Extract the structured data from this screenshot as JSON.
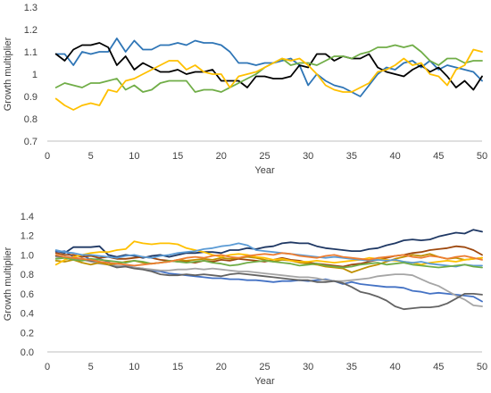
{
  "chart_data": [
    {
      "type": "line",
      "title": "",
      "xlabel": "Year",
      "ylabel": "Growth multiplier",
      "xlim": [
        0,
        50
      ],
      "ylim": [
        0.7,
        1.3
      ],
      "xticks": [
        0,
        5,
        10,
        15,
        20,
        25,
        30,
        35,
        40,
        45,
        50
      ],
      "yticks": [
        0.7,
        0.8,
        0.9,
        1.0,
        1.1,
        1.2,
        1.3
      ],
      "ytick_labels": [
        "0.7",
        "0.8",
        "0.9",
        "1",
        "1.1",
        "1.2",
        "1.3"
      ],
      "grid": false,
      "legend": "none",
      "x": [
        1,
        2,
        3,
        4,
        5,
        6,
        7,
        8,
        9,
        10,
        11,
        12,
        13,
        14,
        15,
        16,
        17,
        18,
        19,
        20,
        21,
        22,
        23,
        24,
        25,
        26,
        27,
        28,
        29,
        30,
        31,
        32,
        33,
        34,
        35,
        36,
        37,
        38,
        39,
        40,
        41,
        42,
        43,
        44,
        45,
        46,
        47,
        48,
        49,
        50
      ],
      "series": [
        {
          "color": "#2E75B6",
          "values": [
            1.09,
            1.09,
            1.04,
            1.1,
            1.09,
            1.1,
            1.1,
            1.16,
            1.1,
            1.15,
            1.11,
            1.11,
            1.13,
            1.13,
            1.14,
            1.13,
            1.15,
            1.14,
            1.14,
            1.13,
            1.1,
            1.05,
            1.05,
            1.04,
            1.05,
            1.05,
            1.06,
            1.07,
            1.04,
            0.95,
            1.0,
            0.97,
            0.95,
            0.94,
            0.92,
            0.9,
            0.95,
            1.0,
            1.03,
            1.02,
            1.05,
            1.06,
            1.03,
            1.06,
            1.02,
            1.04,
            1.03,
            1.02,
            1.01,
            0.97
          ]
        },
        {
          "color": "#000000",
          "values": [
            1.09,
            1.06,
            1.11,
            1.13,
            1.13,
            1.14,
            1.12,
            1.04,
            1.08,
            1.02,
            1.05,
            1.03,
            1.01,
            1.01,
            1.02,
            1.0,
            1.01,
            1.01,
            1.02,
            0.97,
            0.97,
            0.97,
            0.94,
            0.99,
            0.99,
            0.98,
            0.98,
            0.99,
            1.04,
            1.03,
            1.09,
            1.09,
            1.06,
            1.08,
            1.07,
            1.07,
            1.09,
            1.03,
            1.01,
            1.0,
            0.99,
            1.02,
            1.04,
            1.01,
            1.03,
            0.99,
            0.94,
            0.97,
            0.93,
            0.99
          ]
        },
        {
          "color": "#70AD47",
          "values": [
            0.94,
            0.96,
            0.95,
            0.94,
            0.96,
            0.96,
            0.97,
            0.98,
            0.93,
            0.95,
            0.92,
            0.93,
            0.96,
            0.97,
            0.97,
            0.97,
            0.92,
            0.93,
            0.93,
            0.92,
            0.94,
            0.96,
            0.98,
            1.0,
            1.03,
            1.05,
            1.07,
            1.04,
            1.05,
            1.05,
            1.04,
            1.06,
            1.08,
            1.08,
            1.07,
            1.09,
            1.1,
            1.12,
            1.12,
            1.13,
            1.12,
            1.13,
            1.1,
            1.06,
            1.04,
            1.07,
            1.07,
            1.05,
            1.06,
            1.06
          ]
        },
        {
          "color": "#FFC000",
          "values": [
            0.89,
            0.86,
            0.84,
            0.86,
            0.87,
            0.86,
            0.93,
            0.92,
            0.97,
            0.98,
            1.0,
            1.02,
            1.04,
            1.06,
            1.06,
            1.02,
            1.04,
            1.01,
            1.0,
            1.0,
            0.94,
            0.99,
            1.0,
            1.01,
            1.03,
            1.05,
            1.07,
            1.06,
            1.07,
            1.04,
            1.0,
            0.95,
            0.93,
            0.92,
            0.92,
            0.94,
            0.96,
            1.01,
            1.02,
            1.04,
            1.07,
            1.04,
            1.05,
            1.0,
            0.99,
            0.95,
            1.02,
            1.04,
            1.11,
            1.1
          ]
        }
      ]
    },
    {
      "type": "line",
      "title": "",
      "xlabel": "Year",
      "ylabel": "Growth multiplier",
      "xlim": [
        0,
        50
      ],
      "ylim": [
        0.0,
        1.4
      ],
      "xticks": [
        0,
        5,
        10,
        15,
        20,
        25,
        30,
        35,
        40,
        45,
        50
      ],
      "yticks": [
        0.0,
        0.2,
        0.4,
        0.6,
        0.8,
        1.0,
        1.2,
        1.4
      ],
      "ytick_labels": [
        "0.0",
        "0.2",
        "0.4",
        "0.6",
        "0.8",
        "1.0",
        "1.2",
        "1.4"
      ],
      "grid": false,
      "legend": "none",
      "x": [
        1,
        2,
        3,
        4,
        5,
        6,
        7,
        8,
        9,
        10,
        11,
        12,
        13,
        14,
        15,
        16,
        17,
        18,
        19,
        20,
        21,
        22,
        23,
        24,
        25,
        26,
        27,
        28,
        29,
        30,
        31,
        32,
        33,
        34,
        35,
        36,
        37,
        38,
        39,
        40,
        41,
        42,
        43,
        44,
        45,
        46,
        47,
        48,
        49,
        50
      ],
      "series": [
        {
          "color": "#1F3864",
          "values": [
            1.04,
            1.02,
            1.08,
            1.08,
            1.08,
            1.09,
            1.0,
            0.98,
            1.0,
            0.99,
            0.97,
            0.99,
            1.0,
            0.98,
            1.0,
            1.02,
            1.02,
            1.03,
            1.03,
            1.02,
            1.05,
            1.05,
            1.07,
            1.06,
            1.08,
            1.09,
            1.12,
            1.13,
            1.12,
            1.12,
            1.09,
            1.07,
            1.06,
            1.05,
            1.04,
            1.04,
            1.06,
            1.07,
            1.1,
            1.12,
            1.15,
            1.16,
            1.15,
            1.16,
            1.19,
            1.21,
            1.23,
            1.22,
            1.26,
            1.24
          ]
        },
        {
          "color": "#4472C4",
          "values": [
            1.03,
            1.04,
            0.98,
            1.0,
            0.95,
            0.96,
            0.93,
            0.88,
            0.89,
            0.87,
            0.86,
            0.84,
            0.83,
            0.81,
            0.8,
            0.79,
            0.78,
            0.77,
            0.76,
            0.76,
            0.75,
            0.75,
            0.74,
            0.74,
            0.73,
            0.72,
            0.73,
            0.73,
            0.74,
            0.73,
            0.74,
            0.75,
            0.73,
            0.7,
            0.72,
            0.7,
            0.69,
            0.68,
            0.67,
            0.67,
            0.66,
            0.63,
            0.62,
            0.6,
            0.61,
            0.6,
            0.59,
            0.58,
            0.57,
            0.52
          ]
        },
        {
          "color": "#A5A5A5",
          "values": [
            0.98,
            0.97,
            0.96,
            0.95,
            0.93,
            0.91,
            0.9,
            0.89,
            0.88,
            0.87,
            0.86,
            0.85,
            0.84,
            0.84,
            0.85,
            0.85,
            0.86,
            0.85,
            0.86,
            0.85,
            0.84,
            0.83,
            0.83,
            0.82,
            0.81,
            0.8,
            0.79,
            0.78,
            0.77,
            0.77,
            0.76,
            0.74,
            0.73,
            0.73,
            0.74,
            0.75,
            0.76,
            0.78,
            0.79,
            0.8,
            0.8,
            0.79,
            0.75,
            0.71,
            0.68,
            0.63,
            0.58,
            0.54,
            0.48,
            0.47
          ]
        },
        {
          "color": "#636363",
          "values": [
            0.99,
            0.98,
            0.97,
            0.96,
            0.94,
            0.93,
            0.9,
            0.87,
            0.88,
            0.86,
            0.85,
            0.83,
            0.8,
            0.79,
            0.79,
            0.8,
            0.79,
            0.8,
            0.79,
            0.78,
            0.8,
            0.81,
            0.8,
            0.79,
            0.78,
            0.77,
            0.76,
            0.75,
            0.74,
            0.74,
            0.72,
            0.72,
            0.73,
            0.71,
            0.67,
            0.62,
            0.6,
            0.57,
            0.53,
            0.47,
            0.44,
            0.45,
            0.46,
            0.46,
            0.47,
            0.5,
            0.55,
            0.6,
            0.6,
            0.59
          ]
        },
        {
          "color": "#9E480E",
          "values": [
            1.02,
            1.0,
            1.0,
            0.98,
            0.99,
            0.97,
            0.98,
            0.96,
            0.96,
            0.97,
            0.98,
            0.97,
            0.95,
            0.94,
            0.93,
            0.93,
            0.92,
            0.94,
            0.93,
            0.95,
            0.94,
            0.96,
            0.95,
            0.94,
            0.93,
            0.95,
            0.97,
            0.95,
            0.94,
            0.92,
            0.91,
            0.9,
            0.89,
            0.88,
            0.9,
            0.91,
            0.93,
            0.95,
            0.97,
            0.99,
            1.0,
            1.02,
            1.03,
            1.05,
            1.06,
            1.07,
            1.09,
            1.08,
            1.05,
            1.0
          ]
        },
        {
          "color": "#BF8F00",
          "values": [
            0.94,
            0.93,
            0.95,
            0.92,
            0.9,
            0.92,
            0.9,
            0.91,
            0.93,
            0.94,
            0.92,
            0.91,
            0.92,
            0.93,
            0.95,
            0.94,
            0.95,
            0.96,
            0.95,
            0.97,
            0.96,
            0.97,
            0.98,
            0.97,
            0.95,
            0.93,
            0.95,
            0.94,
            0.92,
            0.91,
            0.9,
            0.88,
            0.87,
            0.86,
            0.82,
            0.85,
            0.88,
            0.9,
            0.93,
            0.96,
            0.98,
            1.0,
            0.99,
            1.01,
            0.98,
            0.96,
            0.97,
            0.95,
            0.96,
            0.97
          ]
        },
        {
          "color": "#FFC000",
          "values": [
            0.9,
            0.95,
            0.98,
            1.0,
            1.02,
            1.03,
            1.03,
            1.05,
            1.06,
            1.14,
            1.12,
            1.11,
            1.12,
            1.12,
            1.11,
            1.07,
            1.05,
            1.03,
            1.0,
            0.98,
            1.0,
            1.01,
            1.0,
            0.98,
            0.97,
            0.95,
            0.96,
            0.94,
            0.93,
            0.93,
            0.94,
            0.93,
            0.92,
            0.93,
            0.94,
            0.95,
            0.97,
            0.96,
            0.95,
            0.94,
            0.93,
            0.92,
            0.9,
            0.92,
            0.93,
            0.94,
            0.93,
            0.95,
            0.96,
            0.97
          ]
        },
        {
          "color": "#5B9BD5",
          "values": [
            1.05,
            1.03,
            1.02,
            1.0,
            1.0,
            0.99,
            0.98,
            0.97,
            0.99,
            1.0,
            0.98,
            0.97,
            0.99,
            1.0,
            1.02,
            1.03,
            1.04,
            1.06,
            1.07,
            1.09,
            1.1,
            1.12,
            1.1,
            1.05,
            1.04,
            1.03,
            1.02,
            1.01,
            1.0,
            0.99,
            0.98,
            0.97,
            0.98,
            0.97,
            0.96,
            0.95,
            0.94,
            0.95,
            0.94,
            0.95,
            0.93,
            0.92,
            0.93,
            0.91,
            0.9,
            0.89,
            0.88,
            0.9,
            0.89,
            0.89
          ]
        },
        {
          "color": "#70AD47",
          "values": [
            0.96,
            0.97,
            0.95,
            0.94,
            0.96,
            0.95,
            0.94,
            0.93,
            0.92,
            0.94,
            0.93,
            0.91,
            0.92,
            0.94,
            0.93,
            0.92,
            0.93,
            0.94,
            0.92,
            0.91,
            0.89,
            0.9,
            0.92,
            0.93,
            0.94,
            0.93,
            0.92,
            0.91,
            0.89,
            0.9,
            0.91,
            0.89,
            0.88,
            0.87,
            0.88,
            0.9,
            0.91,
            0.92,
            0.9,
            0.91,
            0.92,
            0.9,
            0.89,
            0.88,
            0.87,
            0.88,
            0.89,
            0.9,
            0.88,
            0.87
          ]
        },
        {
          "color": "#ED7D31",
          "values": [
            1.0,
            0.98,
            0.97,
            0.96,
            0.95,
            0.93,
            0.92,
            0.91,
            0.9,
            0.89,
            0.9,
            0.91,
            0.92,
            0.93,
            0.95,
            0.97,
            0.98,
            0.97,
            0.99,
            1.0,
            0.98,
            0.97,
            0.99,
            1.0,
            1.01,
            1.0,
            1.02,
            1.01,
            0.99,
            0.98,
            0.97,
            0.99,
            1.0,
            0.98,
            0.97,
            0.96,
            0.95,
            0.97,
            0.98,
            0.99,
            1.0,
            0.98,
            0.97,
            0.99,
            0.98,
            0.96,
            0.98,
            0.99,
            0.97,
            0.95
          ]
        }
      ]
    }
  ]
}
